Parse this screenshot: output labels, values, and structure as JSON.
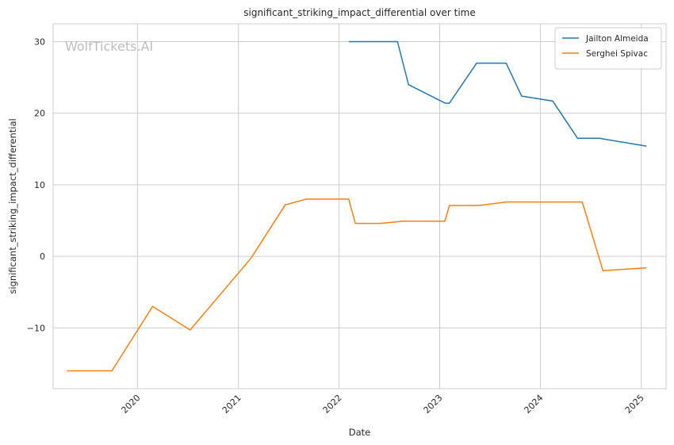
{
  "chart_data": {
    "type": "line",
    "title": "significant_striking_impact_differential over time",
    "xlabel": "Date",
    "ylabel": "significant_striking_impact_differential",
    "watermark": "WolfTickets.AI",
    "x_ticks": [
      "2020",
      "2021",
      "2022",
      "2023",
      "2024",
      "2025"
    ],
    "y_ticks": [
      "−10",
      "0",
      "10",
      "20",
      "30"
    ],
    "xlim": [
      "2019-03-01",
      "2025-04-01"
    ],
    "ylim": [
      -18.5,
      32.5
    ],
    "grid": true,
    "legend_position": "top-right",
    "series": [
      {
        "name": "Jailton Almeida",
        "color": "#1f77b4",
        "points": [
          {
            "x": "2022-02-05",
            "y": 30
          },
          {
            "x": "2022-08-01",
            "y": 30
          },
          {
            "x": "2022-09-10",
            "y": 24
          },
          {
            "x": "2023-01-21",
            "y": 21.4
          },
          {
            "x": "2023-02-05",
            "y": 21.4
          },
          {
            "x": "2023-05-15",
            "y": 27
          },
          {
            "x": "2023-08-30",
            "y": 27
          },
          {
            "x": "2023-10-25",
            "y": 22.4
          },
          {
            "x": "2024-02-15",
            "y": 21.7
          },
          {
            "x": "2024-05-15",
            "y": 16.5
          },
          {
            "x": "2024-08-01",
            "y": 16.5
          },
          {
            "x": "2025-01-20",
            "y": 15.4
          }
        ]
      },
      {
        "name": "Serghei Spivac",
        "color": "#ff7f0e",
        "points": [
          {
            "x": "2019-04-20",
            "y": -16
          },
          {
            "x": "2019-09-30",
            "y": -16
          },
          {
            "x": "2020-02-25",
            "y": -7
          },
          {
            "x": "2020-07-10",
            "y": -10.3
          },
          {
            "x": "2021-02-15",
            "y": -0.3
          },
          {
            "x": "2021-06-20",
            "y": 7.2
          },
          {
            "x": "2021-09-05",
            "y": 8
          },
          {
            "x": "2022-02-05",
            "y": 8
          },
          {
            "x": "2022-03-01",
            "y": 4.6
          },
          {
            "x": "2022-06-01",
            "y": 4.6
          },
          {
            "x": "2022-08-20",
            "y": 4.9
          },
          {
            "x": "2023-01-20",
            "y": 4.9
          },
          {
            "x": "2023-02-05",
            "y": 7.1
          },
          {
            "x": "2023-05-20",
            "y": 7.1
          },
          {
            "x": "2023-09-01",
            "y": 7.6
          },
          {
            "x": "2024-06-01",
            "y": 7.6
          },
          {
            "x": "2024-08-15",
            "y": -2
          },
          {
            "x": "2025-01-20",
            "y": -1.6
          }
        ]
      }
    ]
  }
}
